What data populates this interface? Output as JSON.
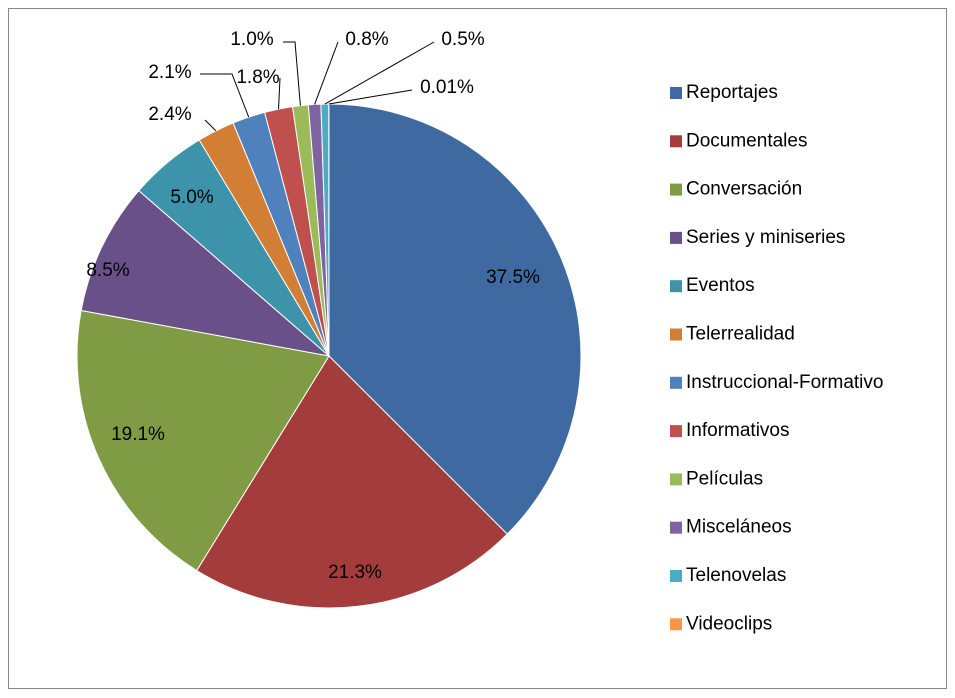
{
  "chart_data": {
    "type": "pie",
    "categories": [
      "Reportajes",
      "Documentales",
      "Conversación",
      "Series y miniseries",
      "Eventos",
      "Telerrealidad",
      "Instruccional-Formativo",
      "Informativos",
      "Películas",
      "Misceláneos",
      "Telenovelas",
      "Videoclips"
    ],
    "values": [
      37.5,
      21.3,
      19.1,
      8.5,
      5.0,
      2.4,
      2.1,
      1.8,
      1.0,
      0.8,
      0.5,
      0.01
    ],
    "value_labels": [
      "37.5%",
      "21.3%",
      "19.1%",
      "8.5%",
      "5.0%",
      "2.4%",
      "2.1%",
      "1.8%",
      "1.0%",
      "0.8%",
      "0.5%",
      "0.01%"
    ],
    "colors": [
      "#3f6aa1",
      "#a33c3a",
      "#7f9c45",
      "#6a5089",
      "#3d93a9",
      "#d27f35",
      "#4f81bd",
      "#c0504d",
      "#9bbb59",
      "#8064a2",
      "#4bacc6",
      "#f79646"
    ],
    "legend": "right"
  }
}
